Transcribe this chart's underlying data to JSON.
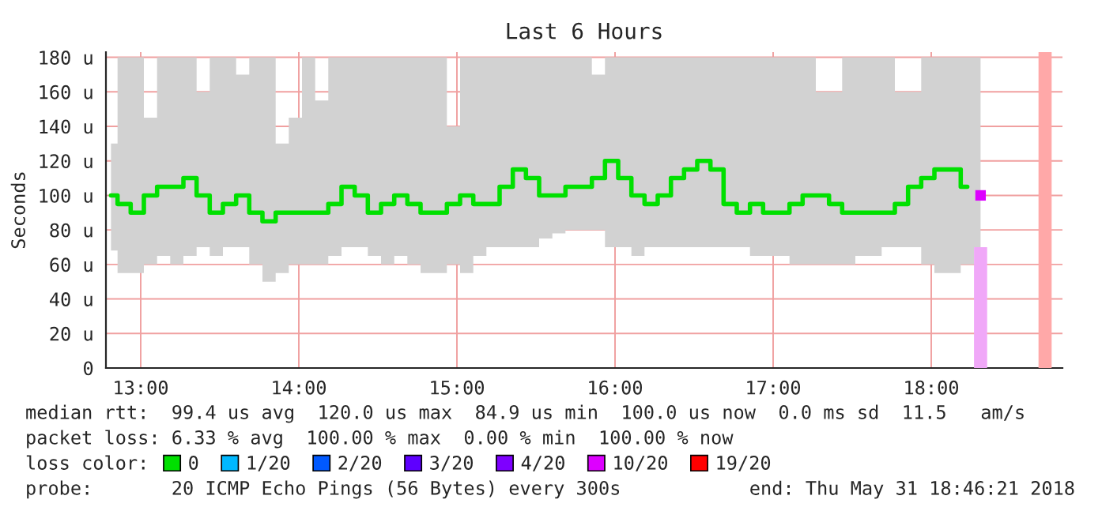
{
  "chart_data": {
    "type": "step",
    "title": "Last 6 Hours",
    "ylabel": "Seconds",
    "xlim": [
      12.78,
      18.83
    ],
    "xticks": [
      {
        "value": 13,
        "label": "13:00"
      },
      {
        "value": 14,
        "label": "14:00"
      },
      {
        "value": 15,
        "label": "15:00"
      },
      {
        "value": 16,
        "label": "16:00"
      },
      {
        "value": 17,
        "label": "17:00"
      },
      {
        "value": 18,
        "label": "18:00"
      }
    ],
    "ylim": [
      0,
      183
    ],
    "yticks": [
      0,
      {
        "value": 20,
        "label": "20 u"
      },
      {
        "value": 40,
        "label": "40 u"
      },
      {
        "value": 60,
        "label": "60 u"
      },
      {
        "value": 80,
        "label": "80 u"
      },
      {
        "value": 100,
        "label": "100 u"
      },
      {
        "value": 120,
        "label": "120 u"
      },
      {
        "value": 140,
        "label": "140 u"
      },
      {
        "value": 160,
        "label": "160 u"
      },
      {
        "value": 180,
        "label": "180 u"
      }
    ],
    "grid": true,
    "legend": "bottom",
    "legend_title": "loss color:",
    "series": [
      {
        "name": "0",
        "color": "#00e000",
        "x": [
          12.812,
          12.895,
          12.978,
          13.062,
          13.145,
          13.228,
          13.312,
          13.395,
          13.478,
          13.562,
          13.645,
          13.728,
          13.812,
          13.895,
          13.978,
          14.062,
          14.145,
          14.228,
          14.312,
          14.395,
          14.478,
          14.562,
          14.645,
          14.728,
          14.812,
          14.895,
          14.978,
          15.062,
          15.145,
          15.228,
          15.312,
          15.395,
          15.478,
          15.562,
          15.645,
          15.728,
          15.812,
          15.895,
          15.978,
          16.062,
          16.145,
          16.228,
          16.312,
          16.395,
          16.478,
          16.562,
          16.645,
          16.728,
          16.812,
          16.895,
          16.978,
          17.062,
          17.145,
          17.228,
          17.312,
          17.395,
          17.478,
          17.562,
          17.645,
          17.728,
          17.812,
          17.895,
          17.978,
          18.062,
          18.145,
          18.228,
          18.312
        ],
        "values": [
          100,
          95,
          90,
          100,
          105,
          105,
          110,
          100,
          90,
          95,
          100,
          90,
          85,
          90,
          90,
          90,
          90,
          95,
          105,
          100,
          90,
          95,
          100,
          95,
          90,
          90,
          95,
          100,
          95,
          95,
          105,
          115,
          110,
          100,
          100,
          105,
          105,
          110,
          120,
          110,
          100,
          95,
          100,
          110,
          115,
          120,
          115,
          95,
          90,
          95,
          90,
          90,
          95,
          100,
          100,
          95,
          90,
          90,
          90,
          90,
          95,
          105,
          110,
          115,
          115,
          105,
          null
        ],
        "lower": [
          68,
          55,
          55,
          60,
          65,
          60,
          65,
          70,
          65,
          70,
          70,
          60,
          50,
          55,
          60,
          60,
          60,
          65,
          70,
          70,
          65,
          60,
          65,
          60,
          55,
          55,
          60,
          55,
          65,
          70,
          70,
          70,
          70,
          75,
          78,
          80,
          80,
          80,
          70,
          70,
          65,
          70,
          70,
          70,
          70,
          70,
          70,
          70,
          70,
          65,
          65,
          65,
          60,
          60,
          60,
          60,
          60,
          65,
          65,
          70,
          70,
          70,
          60,
          55,
          55,
          60,
          70
        ],
        "upper": [
          130,
          180,
          180,
          145,
          180,
          180,
          180,
          160,
          180,
          180,
          170,
          180,
          180,
          130,
          145,
          180,
          155,
          180,
          180,
          180,
          180,
          180,
          180,
          180,
          180,
          180,
          140,
          180,
          180,
          180,
          180,
          180,
          180,
          180,
          180,
          180,
          180,
          170,
          180,
          180,
          180,
          180,
          180,
          180,
          180,
          180,
          180,
          180,
          180,
          180,
          180,
          180,
          180,
          180,
          160,
          160,
          180,
          180,
          180,
          180,
          160,
          160,
          180,
          180,
          180,
          180,
          180
        ]
      },
      {
        "name": "1/20",
        "color": "#00b8ff"
      },
      {
        "name": "2/20",
        "color": "#0059ff"
      },
      {
        "name": "3/20",
        "color": "#5e00ff"
      },
      {
        "name": "4/20",
        "color": "#7e00ff"
      },
      {
        "name": "10/20",
        "color": "#dd00ff",
        "type": "scatter",
        "marker": "square",
        "x": [
          18.312
        ],
        "values": [
          100
        ]
      },
      {
        "name": "19/20",
        "color": "#ff0000"
      },
      {
        "type": "bar",
        "color": "#f0a8f8",
        "x": [
          18.312
        ],
        "values": [
          70
        ]
      },
      {
        "type": "bar",
        "color": "#ffa8a8",
        "x": [
          18.72
        ],
        "values": [
          183
        ]
      }
    ],
    "annotations": [
      "median rtt:  99.4 us avg  120.0 us max  84.9 us min  100.0 us now  0.0 ms sd  11.5   am/s",
      "packet loss: 6.33 % avg  100.00 % max  0.00 % min  100.00 % now",
      "probe:       20 ICMP Echo Pings (56 Bytes) every 300s",
      "end: Thu May 31 18:46:21 2018"
    ]
  }
}
